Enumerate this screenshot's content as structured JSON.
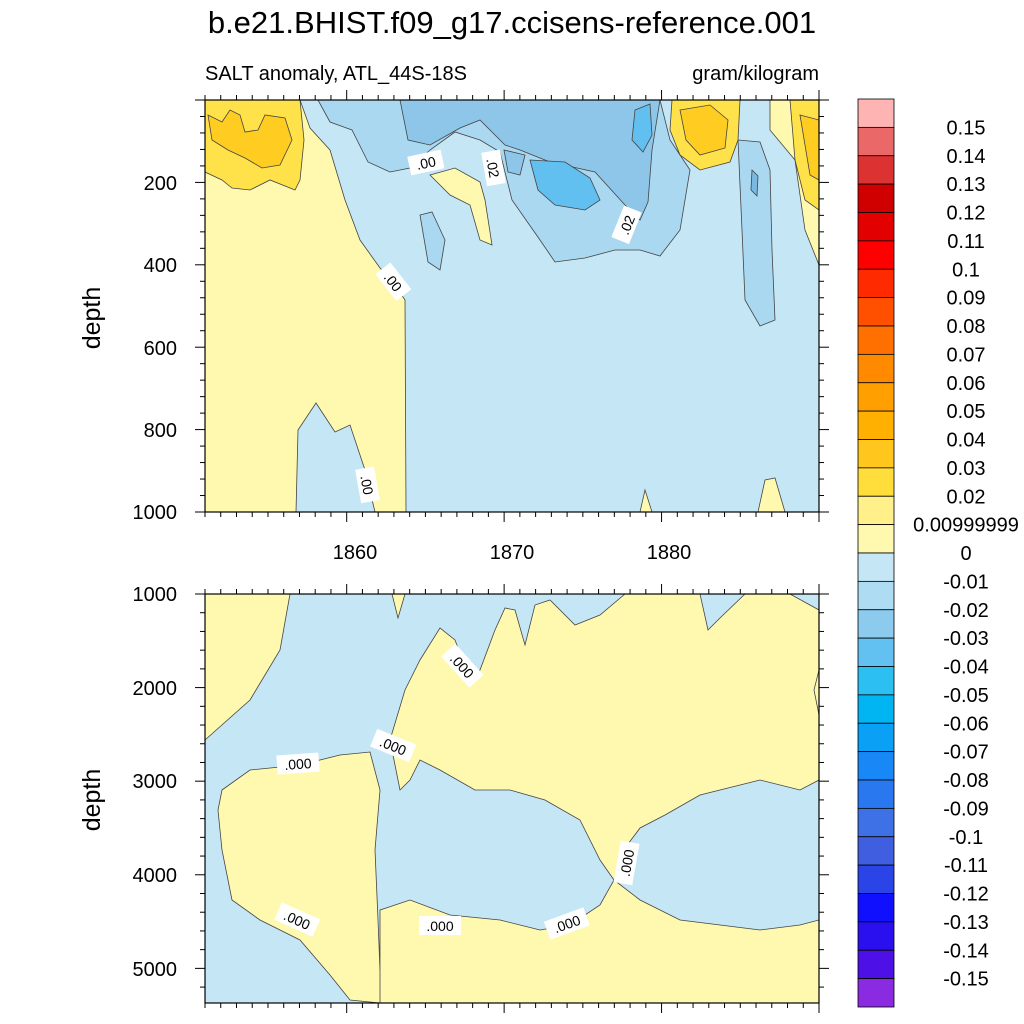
{
  "chart_data": [
    {
      "type": "contour",
      "panel": "upper",
      "title": "b.e21.BHIST.f09_g17.ccisens-reference.001",
      "left_label": "SALT anomaly, ATL_44S-18S",
      "right_label": "gram/kilogram",
      "ylabel": "depth",
      "ylim": [
        0,
        1000
      ],
      "y_inverted": true,
      "y_ticks": [
        "200",
        "400",
        "600",
        "800",
        "1000"
      ],
      "xlim": [
        1851,
        1890
      ],
      "x_ticks": [
        "1860",
        "1870",
        "1880"
      ],
      "contour_labels": [
        ".00",
        ".02",
        ".00",
        ".02",
        ".00"
      ],
      "regions": [
        {
          "level": "0.00999999",
          "color": "#fff9b0",
          "note": "deep left and surface"
        },
        {
          "level": "0",
          "color": "#c4e6f5",
          "note": "background below 400 right of 1863"
        },
        {
          "level": "0.02",
          "color": "#ffe14a"
        },
        {
          "level": "0.03",
          "color": "#ffcc22"
        },
        {
          "level": "-0.01",
          "color": "#a9d8f0"
        },
        {
          "level": "-0.02",
          "color": "#8ec6ea"
        },
        {
          "level": "-0.03",
          "color": "#61c0f0"
        }
      ]
    },
    {
      "type": "contour",
      "panel": "lower",
      "ylabel": "depth",
      "ylim": [
        1000,
        5370
      ],
      "y_inverted": true,
      "y_ticks": [
        "1000",
        "2000",
        "3000",
        "4000",
        "5000"
      ],
      "xlim": [
        1851,
        1890
      ],
      "contour_labels": [
        ".000",
        ".000",
        ".000",
        ".000",
        ".000",
        ".000",
        ".000"
      ],
      "regions": [
        {
          "level": "0",
          "color": "#c4e6f5"
        },
        {
          "level": "0.00999999",
          "color": "#fff9b0"
        }
      ]
    }
  ],
  "colorbar": {
    "labels": [
      "0.15",
      "0.14",
      "0.13",
      "0.12",
      "0.11",
      "0.1",
      "0.09",
      "0.08",
      "0.07",
      "0.06",
      "0.05",
      "0.04",
      "0.03",
      "0.02",
      "0.00999999",
      "0",
      "-0.01",
      "-0.02",
      "-0.03",
      "-0.04",
      "-0.05",
      "-0.06",
      "-0.07",
      "-0.08",
      "-0.09",
      "-0.1",
      "-0.11",
      "-0.12",
      "-0.13",
      "-0.14",
      "-0.15"
    ],
    "colors": [
      "#ffb4b4",
      "#ea6868",
      "#dc3232",
      "#d00000",
      "#e20000",
      "#ff0000",
      "#ff2a00",
      "#ff5000",
      "#ff7000",
      "#ff8a00",
      "#ffa000",
      "#ffb000",
      "#ffc71e",
      "#ffde3c",
      "#fff08a",
      "#fff9b0",
      "#c4e6f5",
      "#aedcf3",
      "#8ccaee",
      "#62c1f1",
      "#2cc0f2",
      "#00b5f2",
      "#0aa0f5",
      "#1888f7",
      "#2a78f0",
      "#3f71e6",
      "#3f5fe0",
      "#2a44e8",
      "#1010ff",
      "#2a10ee",
      "#4d10e6",
      "#8a2be2"
    ]
  }
}
